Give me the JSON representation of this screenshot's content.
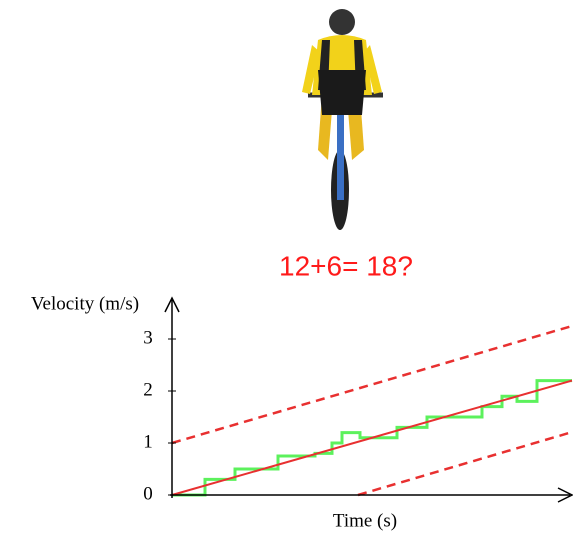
{
  "chart_data": {
    "type": "line",
    "title": "12+6= 18?",
    "y_label": "Velocity (m/s)",
    "x_label": "Time (s)",
    "xlim": [
      0,
      8
    ],
    "ylim": [
      0,
      3.5
    ],
    "yticks": [
      0,
      1,
      2,
      3
    ],
    "series": [
      {
        "color": "#33ee33",
        "step": true,
        "x": [
          0,
          0.66,
          1.26,
          2.12,
          2.86,
          3.2,
          3.4,
          3.76,
          4.5,
          5.1,
          6.2,
          6.6,
          6.9,
          7.3
        ],
        "values": [
          0,
          0.3,
          0.5,
          0.75,
          0.8,
          1.0,
          1.2,
          1.1,
          1.3,
          1.5,
          1.7,
          1.9,
          1.8,
          2.2
        ]
      },
      {
        "color": "#e83030",
        "dashed": false,
        "x": [
          0,
          8
        ],
        "values": [
          0,
          2.2
        ]
      },
      {
        "color": "#e83030",
        "dashed": true,
        "x": [
          0,
          8
        ],
        "values": [
          1,
          3.25
        ]
      },
      {
        "color": "#e83030",
        "dashed": true,
        "x": [
          3.72,
          8
        ],
        "values": [
          0,
          1.21
        ]
      }
    ]
  }
}
